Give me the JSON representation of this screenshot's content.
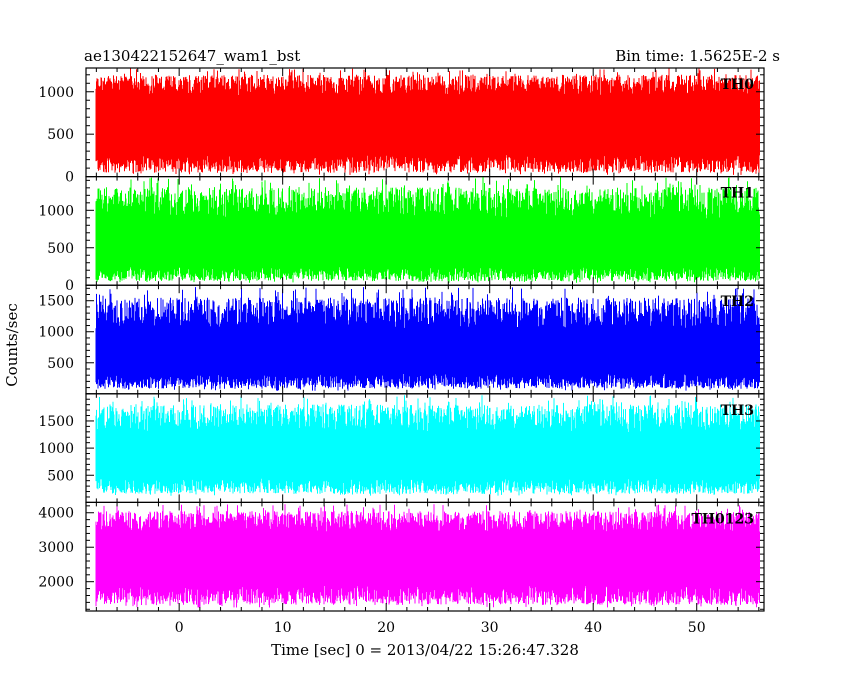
{
  "header": {
    "title": "ae130422152647_wam1_bst",
    "bin_time": "Bin time: 1.5625E-2 s"
  },
  "chart_data": {
    "type": "line",
    "title": "ae130422152647_wam1_bst",
    "xlabel": "Time [sec] 0 = 2013/04/22 15:26:47.328",
    "ylabel": "Counts/sec",
    "xlim": [
      -9,
      56.5
    ],
    "data_x_range": [
      -8,
      56
    ],
    "bin_time_s": 0.015625,
    "x_ticks": [
      0,
      10,
      20,
      30,
      40,
      50
    ],
    "grid": false,
    "panels": [
      {
        "name": "TH0",
        "color": "#ff0000",
        "ylim": [
          0,
          1280
        ],
        "y_ticks": [
          0,
          500,
          1000
        ],
        "typical_low": 150,
        "typical_high": 1080,
        "min": 20,
        "max": 1280
      },
      {
        "name": "TH1",
        "color": "#00ff00",
        "ylim": [
          0,
          1450
        ],
        "y_ticks": [
          0,
          500,
          1000
        ],
        "typical_low": 150,
        "typical_high": 1100,
        "min": 30,
        "max": 1450
      },
      {
        "name": "TH2",
        "color": "#0000ff",
        "ylim": [
          0,
          1750
        ],
        "y_ticks": [
          500,
          1000,
          1500
        ],
        "typical_low": 200,
        "typical_high": 1300,
        "min": 50,
        "max": 1720
      },
      {
        "name": "TH3",
        "color": "#00ffff",
        "ylim": [
          0,
          2000
        ],
        "y_ticks": [
          500,
          1000,
          1500
        ],
        "typical_low": 300,
        "typical_high": 1550,
        "min": 120,
        "max": 1980
      },
      {
        "name": "TH0123",
        "color": "#ff00ff",
        "ylim": [
          1150,
          4300
        ],
        "y_ticks": [
          2000,
          3000,
          4000
        ],
        "typical_low": 1600,
        "typical_high": 3750,
        "min": 1250,
        "max": 4250
      }
    ]
  }
}
